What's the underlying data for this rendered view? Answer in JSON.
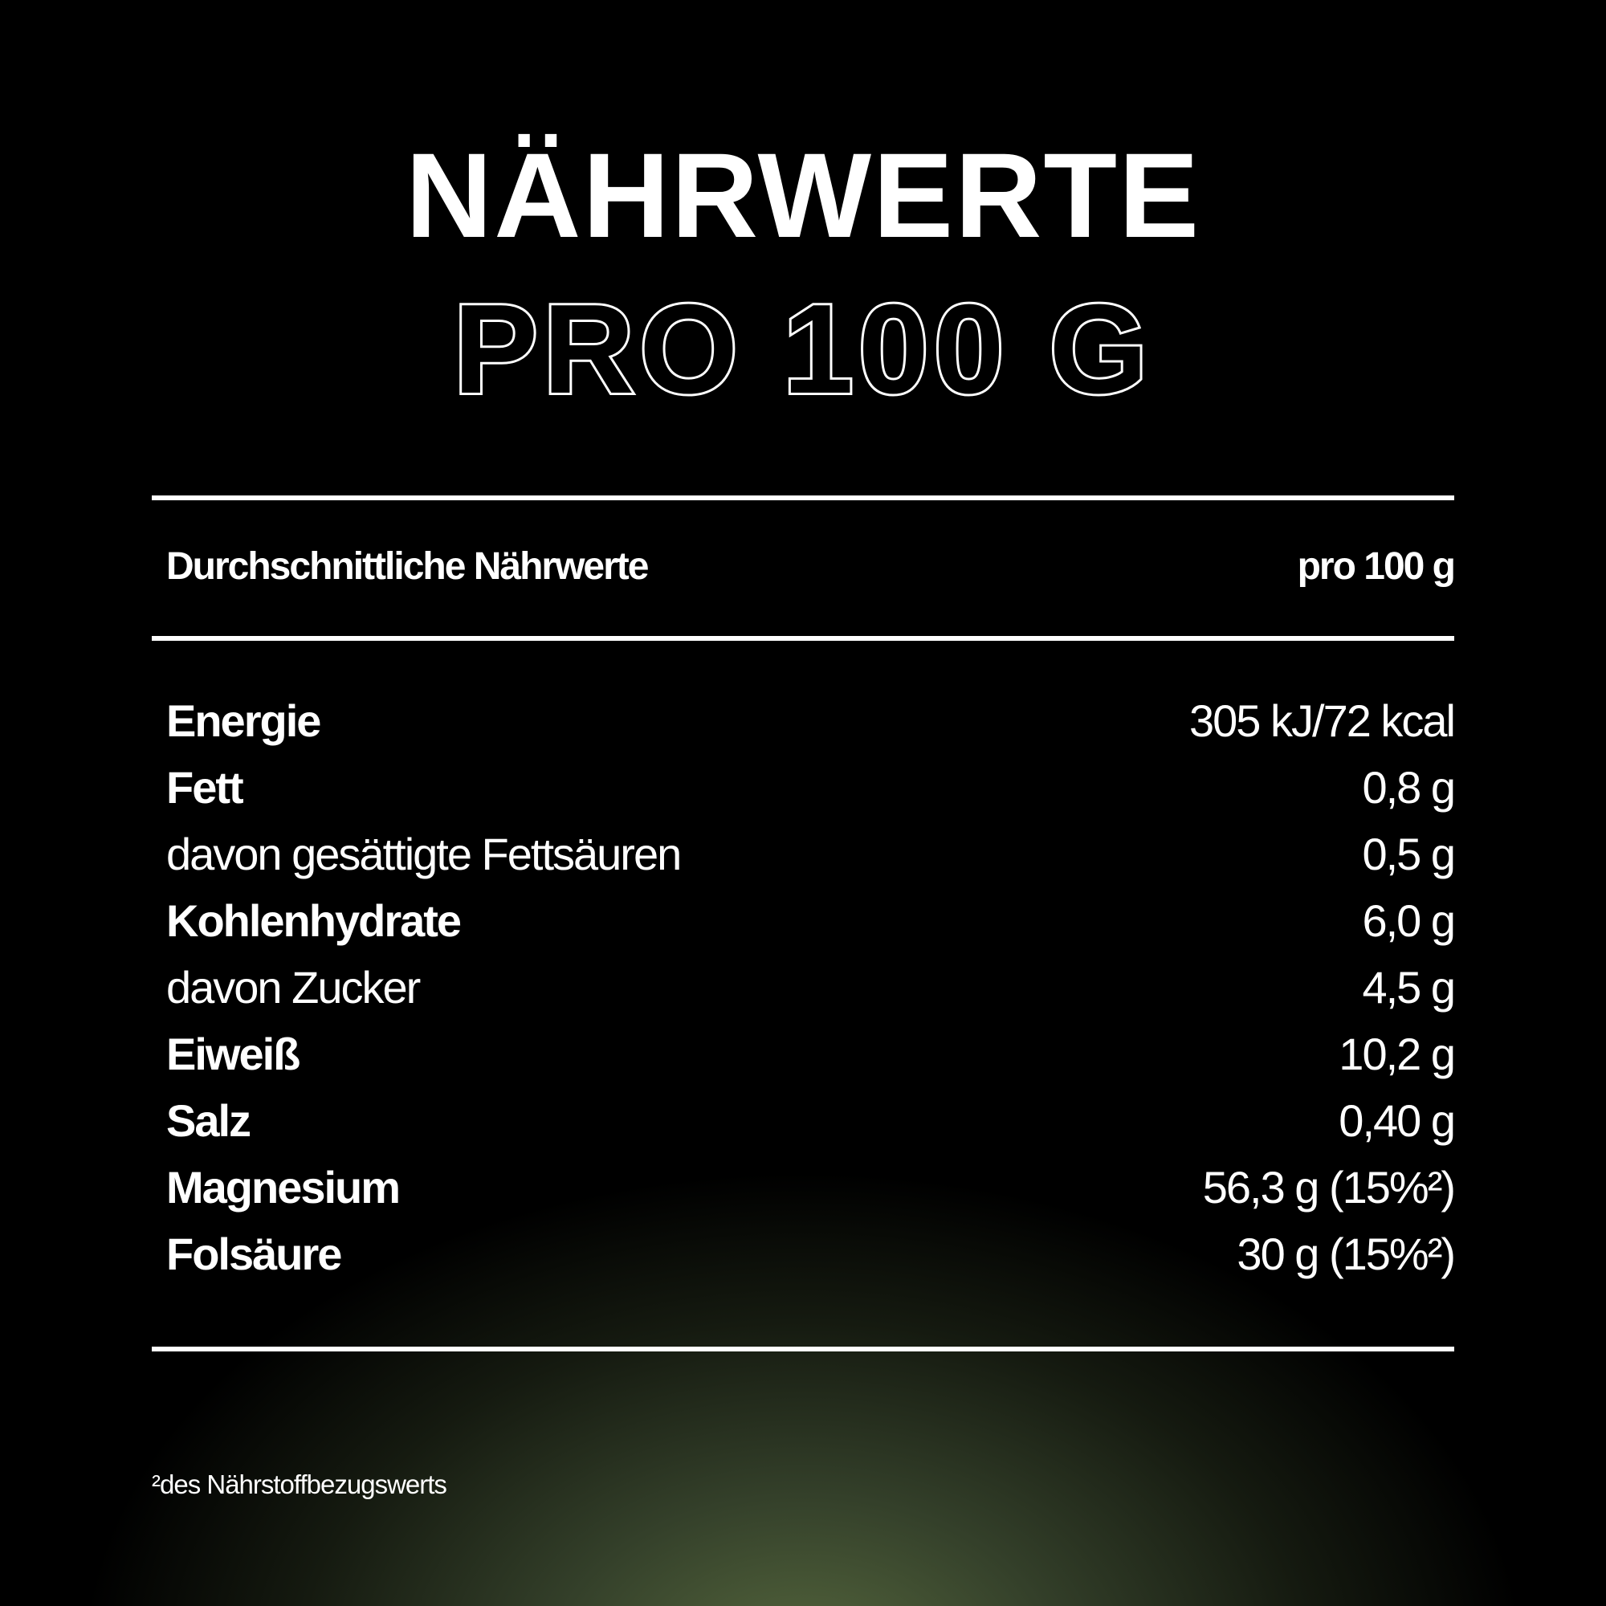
{
  "title": "NÄHRWERTE",
  "subtitle": "PRO 100 G",
  "table": {
    "header": {
      "label": "Durchschnittliche Nährwerte",
      "value": "pro 100 g"
    },
    "rows": [
      {
        "label": "Energie",
        "value": "305 kJ/72 kcal",
        "bold": true
      },
      {
        "label": "Fett",
        "value": "0,8 g",
        "bold": true
      },
      {
        "label": "davon gesättigte Fettsäuren",
        "value": "0,5 g",
        "bold": false
      },
      {
        "label": "Kohlenhydrate",
        "value": "6,0 g",
        "bold": true
      },
      {
        "label": "davon Zucker",
        "value": "4,5 g",
        "bold": false
      },
      {
        "label": "Eiweiß",
        "value": "10,2 g",
        "bold": true
      },
      {
        "label": "Salz",
        "value": "0,40 g",
        "bold": true
      },
      {
        "label": "Magnesium",
        "value": "56,3 g (15%²)",
        "bold": true
      },
      {
        "label": "Folsäure",
        "value": "30 g (15%²)",
        "bold": true
      }
    ]
  },
  "footnote": "²des Nährstoffbezugswerts",
  "colors": {
    "background": "#000000",
    "glow": "#56683e",
    "text": "#ffffff"
  }
}
